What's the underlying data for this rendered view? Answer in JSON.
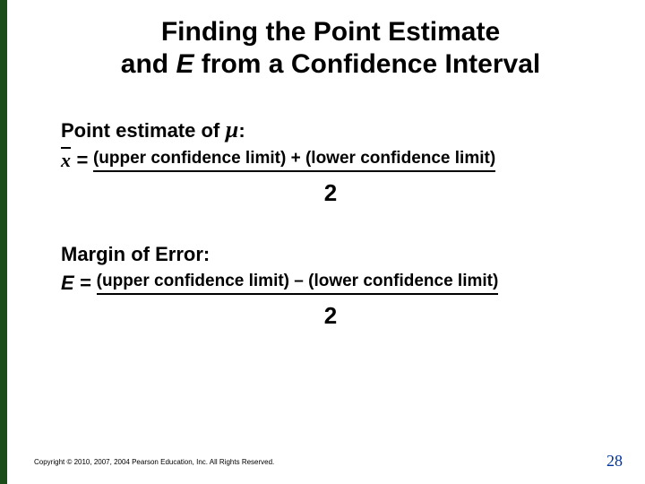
{
  "title_line1": "Finding the Point Estimate",
  "title_line2_pre": "and ",
  "title_line2_E": "E",
  "title_line2_post": " from a Confidence Interval",
  "section1": {
    "label_pre": "Point estimate of ",
    "mu": "µ",
    "label_post": ":",
    "lhs_x": "x",
    "lhs_eq": " = ",
    "numerator": "(upper confidence limit) + (lower confidence limit)",
    "denominator": "2"
  },
  "section2": {
    "label": "Margin of Error:",
    "lhs_E": "E",
    "lhs_eq": " = ",
    "numerator": "(upper confidence limit) – (lower confidence limit)",
    "denominator": "2"
  },
  "copyright": "Copyright © 2010, 2007, 2004 Pearson Education, Inc. All Rights Reserved.",
  "page_number": "28",
  "colors": {
    "border_green": "#1a4d1a",
    "page_num_blue": "#003399",
    "text": "#000000",
    "background": "#ffffff"
  }
}
